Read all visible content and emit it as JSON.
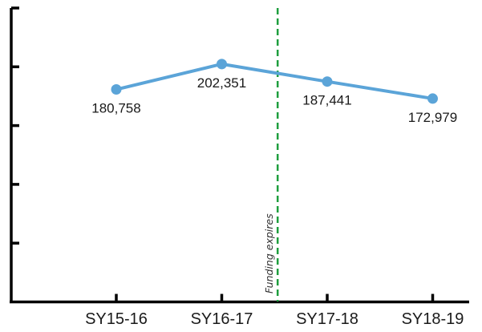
{
  "chart_data": {
    "type": "line",
    "title": "",
    "xlabel": "",
    "ylabel": "",
    "categories": [
      "SY15-16",
      "SY16-17",
      "SY17-18",
      "SY18-19"
    ],
    "series": [
      {
        "values": [
          180758,
          202351,
          187441,
          172979
        ]
      }
    ],
    "data_labels": [
      "180,758",
      "202,351",
      "187,441",
      "172,979"
    ],
    "ylim": [
      0,
      250000
    ],
    "yticks": [
      50000,
      100000,
      150000,
      200000,
      250000
    ],
    "grid": false,
    "legend": "none",
    "annotation": {
      "text": "Funding expires",
      "x_position": 2.53,
      "color": "#1e9e3e"
    },
    "colors": {
      "line": "#5ba4d8",
      "marker": "#5ba4d8",
      "axis": "#000000"
    }
  }
}
